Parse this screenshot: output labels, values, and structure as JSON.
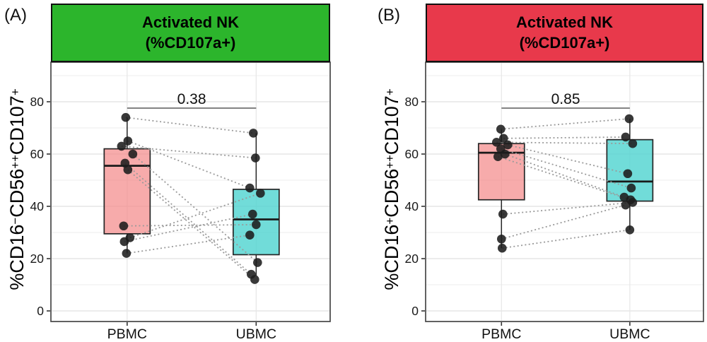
{
  "figure": {
    "background": "#FFFFFF",
    "panels": [
      {
        "label": "(A)",
        "strip": {
          "line1": "Activated NK",
          "line2": "(%CD107a+)",
          "fill": "#2CB52C",
          "text_color": "#000000"
        },
        "ytitle_segments": [
          {
            "t": "%CD16"
          },
          {
            "t": "−",
            "sup": true
          },
          {
            "t": "CD56"
          },
          {
            "t": "++",
            "sup": true
          },
          {
            "t": "CD107"
          },
          {
            "t": "+",
            "sup": true
          }
        ]
      },
      {
        "label": "(B)",
        "strip": {
          "line1": "Activated NK",
          "line2": "(%CD107a+)",
          "fill": "#E8394B",
          "text_color": "#000000"
        },
        "ytitle_segments": [
          {
            "t": "%CD16"
          },
          {
            "t": "+",
            "sup": true
          },
          {
            "t": "CD56"
          },
          {
            "t": "++",
            "sup": true
          },
          {
            "t": "CD107"
          },
          {
            "t": "+",
            "sup": true
          }
        ]
      }
    ]
  },
  "chart_data": [
    {
      "type": "box",
      "panel": "A",
      "title": "Activated NK (%CD107a+)",
      "ylabel": "%CD16-CD56++CD107+",
      "categories": [
        "PBMC",
        "UBMC"
      ],
      "ylim": [
        0,
        95
      ],
      "yticks": [
        0,
        20,
        40,
        60,
        80
      ],
      "grid": true,
      "legend": "none",
      "p_value": "0.38",
      "colors": {
        "PBMC": {
          "fill": "#F48A8A",
          "fill_opacity": 0.72
        },
        "UBMC": {
          "fill": "#4ED3D0",
          "fill_opacity": 0.8
        }
      },
      "box_stats": {
        "PBMC": {
          "q1": 29.5,
          "median": 55.5,
          "q3": 62.0,
          "whisker_low": 22.0,
          "whisker_high": 74.0
        },
        "UBMC": {
          "q1": 21.5,
          "median": 35.0,
          "q3": 46.5,
          "whisker_low": 13.5,
          "whisker_high": 68.0
        }
      },
      "pairs": [
        {
          "p": [
            74,
            -2
          ],
          "u": [
            68,
            -4
          ]
        },
        {
          "p": [
            65,
            1
          ],
          "u": [
            47,
            -9
          ]
        },
        {
          "p": [
            63,
            -8
          ],
          "u": [
            58.5,
            -1
          ]
        },
        {
          "p": [
            60,
            8
          ],
          "u": [
            18.5,
            2
          ]
        },
        {
          "p": [
            56.5,
            -3
          ],
          "u": [
            14,
            -7
          ]
        },
        {
          "p": [
            54,
            1
          ],
          "u": [
            12,
            -2
          ]
        },
        {
          "p": [
            32.5,
            -5
          ],
          "u": [
            33,
            0
          ]
        },
        {
          "p": [
            28,
            4
          ],
          "u": [
            45,
            6
          ]
        },
        {
          "p": [
            26.5,
            -4
          ],
          "u": [
            37,
            -5
          ]
        },
        {
          "p": [
            22,
            -1
          ],
          "u": [
            29,
            -9
          ]
        }
      ]
    },
    {
      "type": "box",
      "panel": "B",
      "title": "Activated NK (%CD107a+)",
      "ylabel": "%CD16+CD56++CD107+",
      "categories": [
        "PBMC",
        "UBMC"
      ],
      "ylim": [
        0,
        95
      ],
      "yticks": [
        0,
        20,
        40,
        60,
        80
      ],
      "grid": true,
      "legend": "none",
      "p_value": "0.85",
      "colors": {
        "PBMC": {
          "fill": "#F48A8A",
          "fill_opacity": 0.72
        },
        "UBMC": {
          "fill": "#4ED3D0",
          "fill_opacity": 0.8
        }
      },
      "box_stats": {
        "PBMC": {
          "q1": 42.5,
          "median": 60.5,
          "q3": 64.0,
          "whisker_low": 24.0,
          "whisker_high": 69.5
        },
        "UBMC": {
          "q1": 42.0,
          "median": 49.5,
          "q3": 65.5,
          "whisker_low": 31.0,
          "whisker_high": 73.5
        }
      },
      "pairs": [
        {
          "p": [
            69.5,
            -1
          ],
          "u": [
            73.5,
            -1
          ]
        },
        {
          "p": [
            66,
            3
          ],
          "u": [
            66.5,
            -6
          ]
        },
        {
          "p": [
            64.5,
            -7
          ],
          "u": [
            64,
            4
          ]
        },
        {
          "p": [
            63.5,
            9
          ],
          "u": [
            52.5,
            -3
          ]
        },
        {
          "p": [
            62,
            -1
          ],
          "u": [
            47,
            2
          ]
        },
        {
          "p": [
            60,
            5
          ],
          "u": [
            43.5,
            -8
          ]
        },
        {
          "p": [
            59,
            -5
          ],
          "u": [
            42.5,
            1
          ]
        },
        {
          "p": [
            37,
            2
          ],
          "u": [
            41.5,
            4
          ]
        },
        {
          "p": [
            27.5,
            0
          ],
          "u": [
            40.5,
            -6
          ]
        },
        {
          "p": [
            24,
            1
          ],
          "u": [
            31,
            0
          ]
        }
      ]
    }
  ]
}
